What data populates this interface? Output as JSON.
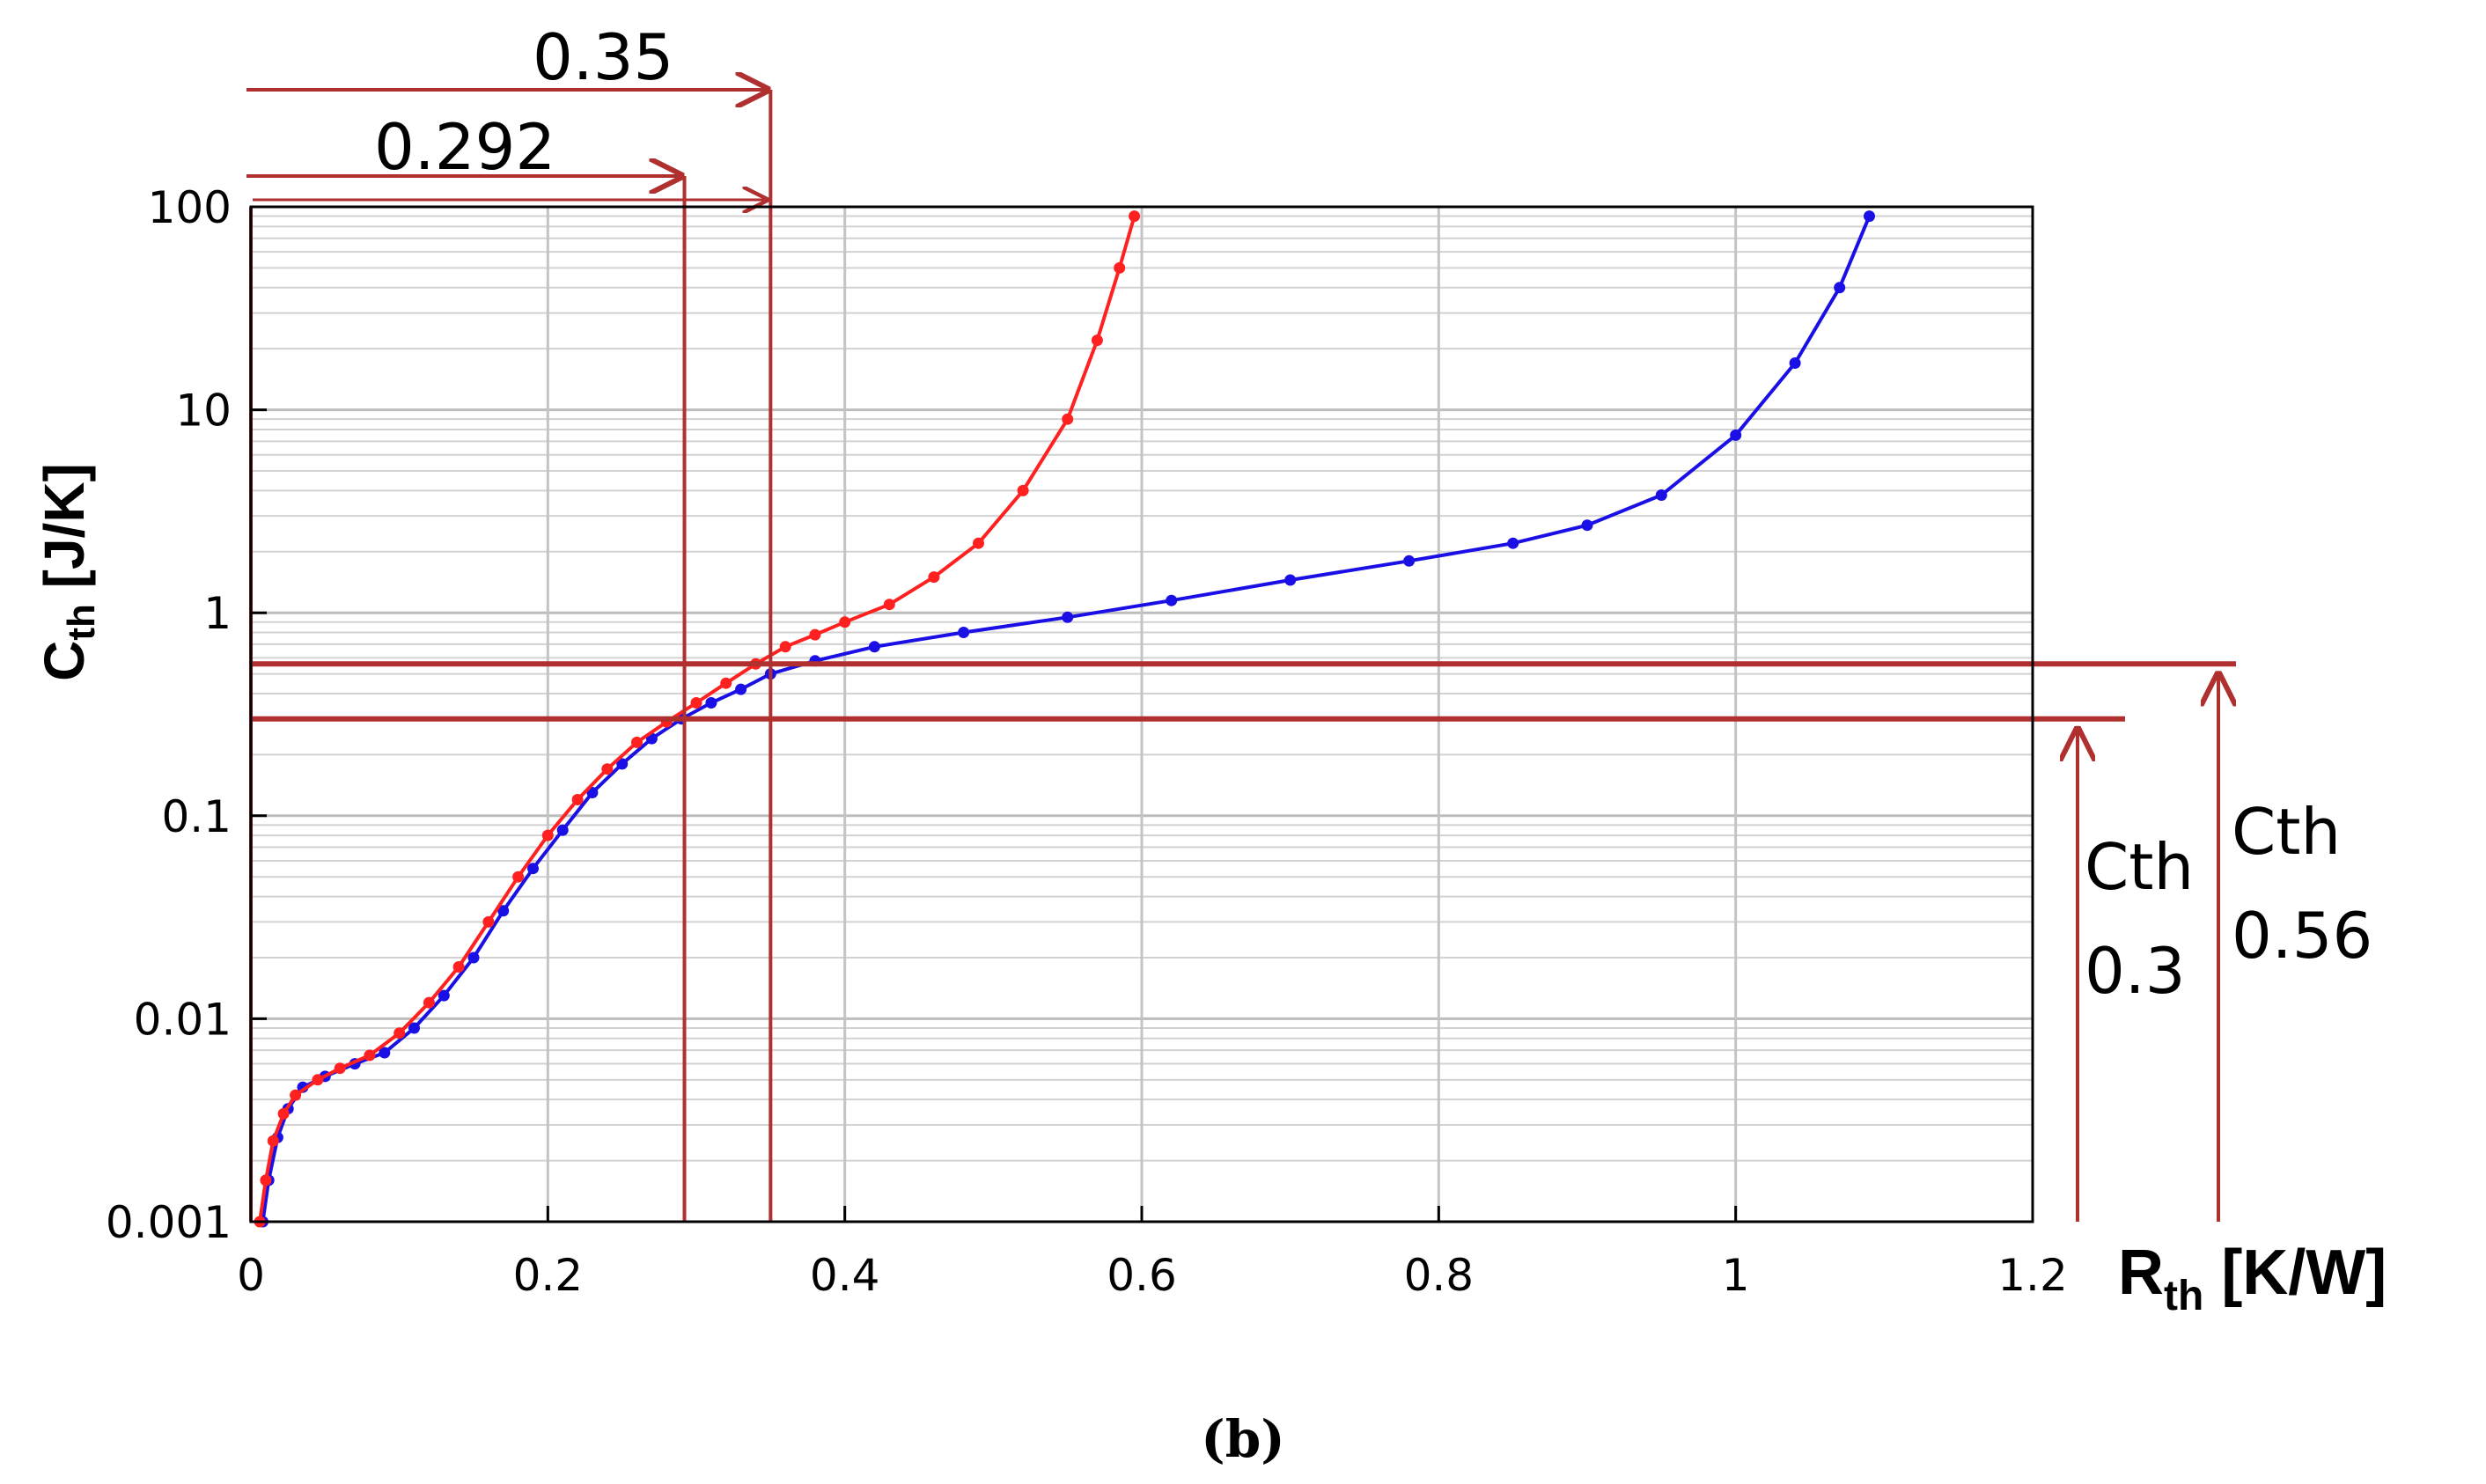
{
  "chart_data": {
    "type": "scatter",
    "xlabel": "R",
    "xlabel_sub": "th",
    "xlabel_unit": "[K/W]",
    "ylabel": "C",
    "ylabel_sub": "th",
    "ylabel_unit": "[J/K]",
    "xlim": [
      0,
      1.2
    ],
    "ylim": [
      0.001,
      100
    ],
    "y_scale": "log",
    "grid": true,
    "x_ticks": [
      0,
      0.2,
      0.4,
      0.6,
      0.8,
      1,
      1.2
    ],
    "x_tick_labels": [
      "0",
      "0.2",
      "0.4",
      "0.6",
      "0.8",
      "1",
      "1.2"
    ],
    "y_ticks": [
      0.001,
      0.01,
      0.1,
      1,
      10,
      100
    ],
    "y_tick_labels": [
      "0.001",
      "0.01",
      "0.1",
      "1",
      "10",
      "100"
    ],
    "series": [
      {
        "color": "#1a10e6",
        "points": [
          [
            0.008,
            0.001
          ],
          [
            0.012,
            0.0016
          ],
          [
            0.018,
            0.0026
          ],
          [
            0.025,
            0.0036
          ],
          [
            0.035,
            0.0046
          ],
          [
            0.05,
            0.0052
          ],
          [
            0.07,
            0.006
          ],
          [
            0.09,
            0.0068
          ],
          [
            0.11,
            0.009
          ],
          [
            0.13,
            0.013
          ],
          [
            0.15,
            0.02
          ],
          [
            0.17,
            0.034
          ],
          [
            0.19,
            0.055
          ],
          [
            0.21,
            0.085
          ],
          [
            0.23,
            0.13
          ],
          [
            0.25,
            0.18
          ],
          [
            0.27,
            0.24
          ],
          [
            0.29,
            0.3
          ],
          [
            0.31,
            0.36
          ],
          [
            0.33,
            0.42
          ],
          [
            0.35,
            0.5
          ],
          [
            0.38,
            0.58
          ],
          [
            0.42,
            0.68
          ],
          [
            0.48,
            0.8
          ],
          [
            0.55,
            0.95
          ],
          [
            0.62,
            1.15
          ],
          [
            0.7,
            1.45
          ],
          [
            0.78,
            1.8
          ],
          [
            0.85,
            2.2
          ],
          [
            0.9,
            2.7
          ],
          [
            0.95,
            3.8
          ],
          [
            1.0,
            7.5
          ],
          [
            1.04,
            17
          ],
          [
            1.07,
            40
          ],
          [
            1.09,
            90
          ]
        ]
      },
      {
        "color": "#ff2020",
        "points": [
          [
            0.006,
            0.001
          ],
          [
            0.01,
            0.0016
          ],
          [
            0.015,
            0.0025
          ],
          [
            0.022,
            0.0034
          ],
          [
            0.03,
            0.0042
          ],
          [
            0.045,
            0.005
          ],
          [
            0.06,
            0.0057
          ],
          [
            0.08,
            0.0066
          ],
          [
            0.1,
            0.0085
          ],
          [
            0.12,
            0.012
          ],
          [
            0.14,
            0.018
          ],
          [
            0.16,
            0.03
          ],
          [
            0.18,
            0.05
          ],
          [
            0.2,
            0.08
          ],
          [
            0.22,
            0.12
          ],
          [
            0.24,
            0.17
          ],
          [
            0.26,
            0.23
          ],
          [
            0.28,
            0.29
          ],
          [
            0.3,
            0.36
          ],
          [
            0.32,
            0.45
          ],
          [
            0.34,
            0.56
          ],
          [
            0.36,
            0.68
          ],
          [
            0.38,
            0.78
          ],
          [
            0.4,
            0.9
          ],
          [
            0.43,
            1.1
          ],
          [
            0.46,
            1.5
          ],
          [
            0.49,
            2.2
          ],
          [
            0.52,
            4
          ],
          [
            0.55,
            9
          ],
          [
            0.57,
            22
          ],
          [
            0.585,
            50
          ],
          [
            0.595,
            90
          ]
        ]
      }
    ],
    "annotations": {
      "v_labels": [
        "0.35",
        "0.292"
      ],
      "v_values": [
        0.35,
        0.292
      ],
      "h_values": [
        0.56,
        0.3
      ],
      "h_label_1": [
        "Cth",
        "0.3"
      ],
      "h_label_2": [
        "Cth",
        "0.56"
      ]
    },
    "caption": "(b)",
    "colors": {
      "annotation": "#b03030",
      "blue_series": "#1a10e6",
      "red_series": "#ff2020"
    }
  }
}
